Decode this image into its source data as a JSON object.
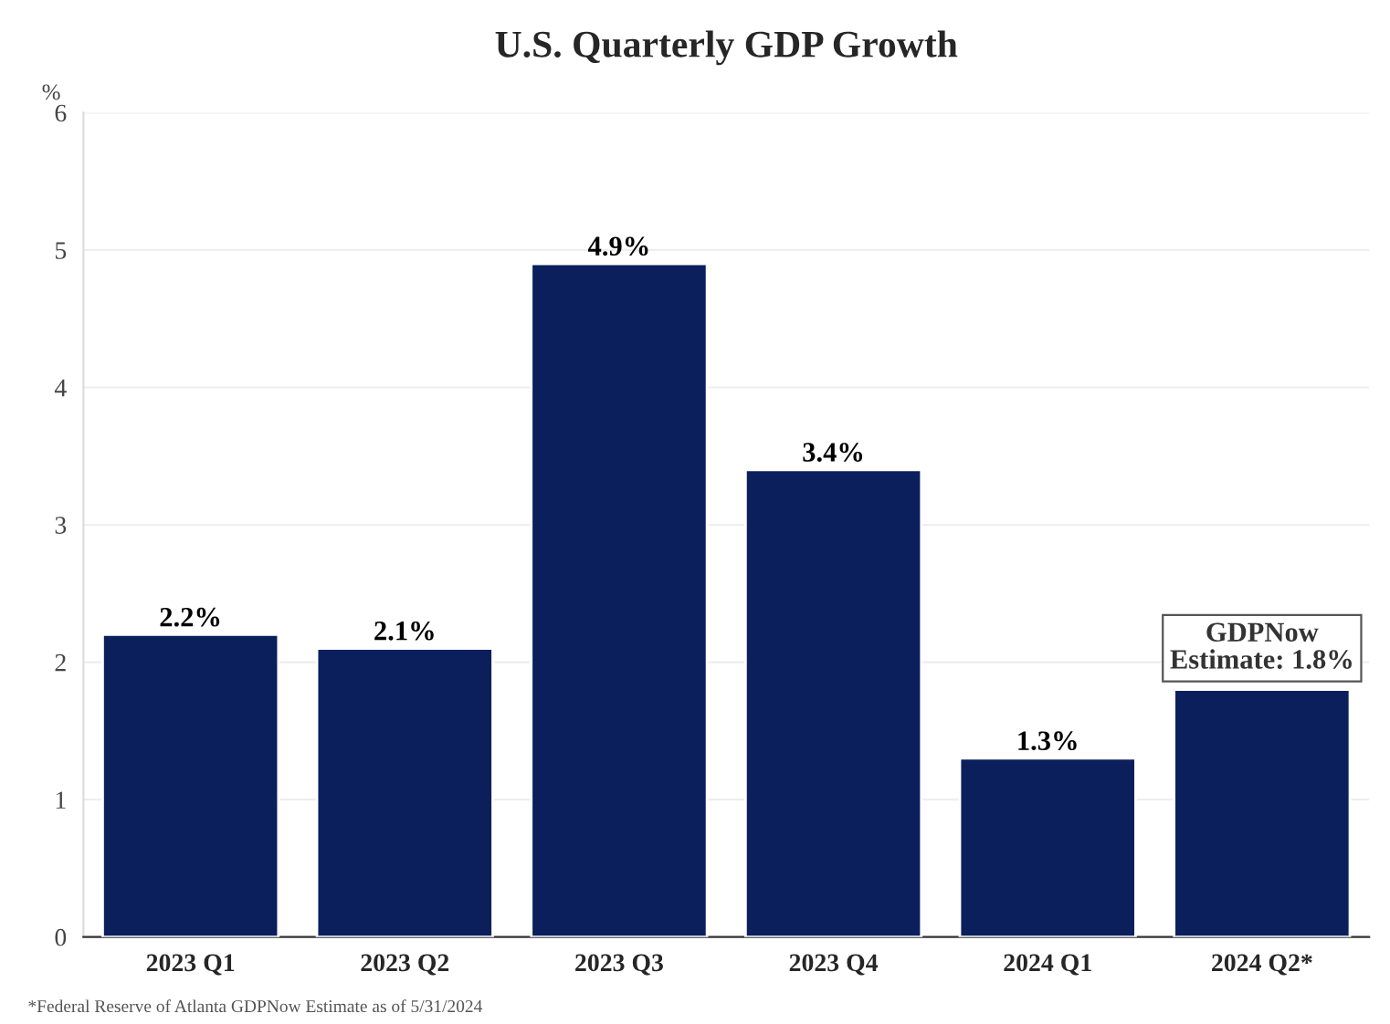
{
  "chart_data": {
    "type": "bar",
    "title": "U.S. Quarterly GDP Growth",
    "ylabel": "%",
    "categories": [
      "2023 Q1",
      "2023 Q2",
      "2023 Q3",
      "2023 Q4",
      "2024 Q1",
      "2024 Q2*"
    ],
    "values": [
      2.2,
      2.1,
      4.9,
      3.4,
      1.3,
      1.8
    ],
    "value_labels": [
      "2.2%",
      "2.1%",
      "4.9%",
      "3.4%",
      "1.3%",
      "GDPNow\nEstimate: 1.8%"
    ],
    "color": "#0b1f5c",
    "ylim": [
      0,
      6
    ],
    "yticks": [
      0,
      1,
      2,
      3,
      4,
      5,
      6
    ],
    "grid": "y",
    "annotations": [
      "*Federal Reserve of Atlanta GDPNow Estimate as of 5/31/2024"
    ]
  }
}
